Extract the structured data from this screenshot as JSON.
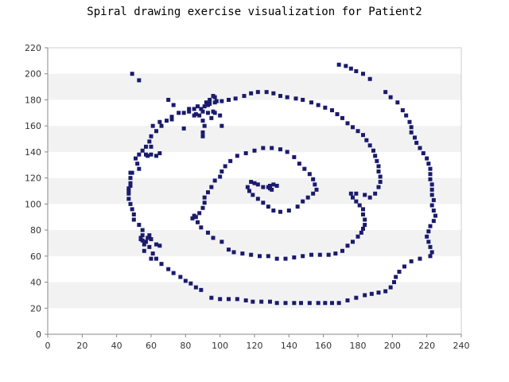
{
  "chart_data": {
    "type": "scatter",
    "title": "Spiral drawing exercise visualization for Patient2",
    "xlabel": "",
    "ylabel": "",
    "xlim": [
      0,
      240
    ],
    "ylim": [
      0,
      220
    ],
    "x_ticks": [
      "0",
      "20",
      "40",
      "60",
      "80",
      "100",
      "120",
      "140",
      "160",
      "180",
      "200",
      "220",
      "240"
    ],
    "y_ticks": [
      "0",
      "20",
      "40",
      "60",
      "80",
      "100",
      "120",
      "140",
      "160",
      "180",
      "200",
      "220"
    ],
    "grid": "alternating horizontal bands",
    "legend": "none",
    "series": [
      {
        "marker": "square",
        "color": "#1a1a6e",
        "points": [
          [
            131,
            115
          ],
          [
            128,
            113
          ],
          [
            125,
            113
          ],
          [
            129,
            112
          ],
          [
            130,
            111
          ],
          [
            133,
            114
          ],
          [
            129,
            114
          ],
          [
            122,
            115
          ],
          [
            120,
            116
          ],
          [
            118,
            117
          ],
          [
            116,
            113
          ],
          [
            117,
            110
          ],
          [
            119,
            107
          ],
          [
            122,
            104
          ],
          [
            125,
            101
          ],
          [
            128,
            98
          ],
          [
            131,
            95
          ],
          [
            135,
            94
          ],
          [
            140,
            95
          ],
          [
            145,
            98
          ],
          [
            148,
            102
          ],
          [
            151,
            105
          ],
          [
            154,
            108
          ],
          [
            156,
            111
          ],
          [
            155,
            115
          ],
          [
            154,
            119
          ],
          [
            152,
            123
          ],
          [
            149,
            127
          ],
          [
            146,
            131
          ],
          [
            143,
            136
          ],
          [
            139,
            140
          ],
          [
            135,
            142
          ],
          [
            130,
            143
          ],
          [
            125,
            143
          ],
          [
            120,
            141
          ],
          [
            115,
            139
          ],
          [
            110,
            137
          ],
          [
            106,
            133
          ],
          [
            103,
            129
          ],
          [
            101,
            125
          ],
          [
            100,
            121
          ],
          [
            97,
            118
          ],
          [
            95,
            113
          ],
          [
            93,
            109
          ],
          [
            91,
            105
          ],
          [
            91,
            101
          ],
          [
            90,
            97
          ],
          [
            88,
            93
          ],
          [
            86,
            90
          ],
          [
            84,
            89
          ],
          [
            85,
            91
          ],
          [
            87,
            86
          ],
          [
            89,
            82
          ],
          [
            93,
            78
          ],
          [
            96,
            74
          ],
          [
            101,
            71
          ],
          [
            105,
            65
          ],
          [
            108,
            63
          ],
          [
            113,
            62
          ],
          [
            118,
            61
          ],
          [
            123,
            60
          ],
          [
            128,
            60
          ],
          [
            133,
            58
          ],
          [
            138,
            58
          ],
          [
            143,
            59
          ],
          [
            148,
            60
          ],
          [
            153,
            61
          ],
          [
            158,
            61
          ],
          [
            163,
            61
          ],
          [
            167,
            62
          ],
          [
            171,
            64
          ],
          [
            174,
            68
          ],
          [
            177,
            71
          ],
          [
            180,
            75
          ],
          [
            182,
            78
          ],
          [
            183,
            81
          ],
          [
            184,
            84
          ],
          [
            184,
            88
          ],
          [
            183,
            92
          ],
          [
            183,
            96
          ],
          [
            181,
            99
          ],
          [
            179,
            102
          ],
          [
            177,
            105
          ],
          [
            176,
            108
          ],
          [
            179,
            108
          ],
          [
            184,
            107
          ],
          [
            187,
            105
          ],
          [
            190,
            108
          ],
          [
            192,
            113
          ],
          [
            193,
            117
          ],
          [
            193,
            121
          ],
          [
            192,
            125
          ],
          [
            192,
            129
          ],
          [
            191,
            133
          ],
          [
            190,
            137
          ],
          [
            189,
            141
          ],
          [
            187,
            145
          ],
          [
            185,
            149
          ],
          [
            183,
            153
          ],
          [
            180,
            156
          ],
          [
            177,
            159
          ],
          [
            174,
            162
          ],
          [
            171,
            166
          ],
          [
            168,
            169
          ],
          [
            165,
            172
          ],
          [
            161,
            174
          ],
          [
            157,
            176
          ],
          [
            153,
            178
          ],
          [
            148,
            180
          ],
          [
            144,
            181
          ],
          [
            139,
            182
          ],
          [
            135,
            183
          ],
          [
            131,
            185
          ],
          [
            127,
            186
          ],
          [
            122,
            186
          ],
          [
            118,
            185
          ],
          [
            114,
            183
          ],
          [
            109,
            181
          ],
          [
            105,
            180
          ],
          [
            101,
            179
          ],
          [
            97,
            178
          ],
          [
            94,
            177
          ],
          [
            91,
            175
          ],
          [
            89,
            173
          ],
          [
            87,
            175
          ],
          [
            85,
            173
          ],
          [
            86,
            169
          ],
          [
            88,
            168
          ],
          [
            90,
            171
          ],
          [
            93,
            170
          ],
          [
            97,
            170
          ],
          [
            100,
            168
          ],
          [
            101,
            160
          ],
          [
            95,
            166
          ],
          [
            96,
            171
          ],
          [
            93,
            176
          ],
          [
            94,
            180
          ],
          [
            97,
            182
          ],
          [
            98,
            179
          ],
          [
            96,
            183
          ],
          [
            92,
            178
          ],
          [
            90,
            164
          ],
          [
            91,
            160
          ],
          [
            90,
            155
          ],
          [
            90,
            152
          ],
          [
            85,
            168
          ],
          [
            82,
            171
          ],
          [
            79,
            170
          ],
          [
            76,
            170
          ],
          [
            72,
            167
          ],
          [
            69,
            164
          ],
          [
            66,
            160
          ],
          [
            63,
            156
          ],
          [
            60,
            152
          ],
          [
            59,
            148
          ],
          [
            57,
            144
          ],
          [
            55,
            141
          ],
          [
            53,
            138
          ],
          [
            51,
            135
          ],
          [
            52,
            131
          ],
          [
            53,
            127
          ],
          [
            49,
            124
          ],
          [
            48,
            120
          ],
          [
            48,
            116
          ],
          [
            47,
            112
          ],
          [
            47,
            108
          ],
          [
            47,
            104
          ],
          [
            48,
            100
          ],
          [
            49,
            96
          ],
          [
            50,
            92
          ],
          [
            50,
            88
          ],
          [
            53,
            84
          ],
          [
            55,
            80
          ],
          [
            55,
            76
          ],
          [
            57,
            71
          ],
          [
            59,
            67
          ],
          [
            61,
            62
          ],
          [
            63,
            58
          ],
          [
            66,
            54
          ],
          [
            70,
            50
          ],
          [
            73,
            47
          ],
          [
            77,
            44
          ],
          [
            80,
            41
          ],
          [
            83,
            39
          ],
          [
            86,
            36
          ],
          [
            89,
            34
          ],
          [
            95,
            28
          ],
          [
            100,
            27
          ],
          [
            105,
            27
          ],
          [
            110,
            27
          ],
          [
            115,
            26
          ],
          [
            119,
            25
          ],
          [
            124,
            25
          ],
          [
            129,
            25
          ],
          [
            133,
            24
          ],
          [
            138,
            24
          ],
          [
            143,
            24
          ],
          [
            147,
            24
          ],
          [
            152,
            24
          ],
          [
            157,
            24
          ],
          [
            161,
            24
          ],
          [
            165,
            24
          ],
          [
            169,
            24
          ],
          [
            174,
            26
          ],
          [
            179,
            28
          ],
          [
            184,
            30
          ],
          [
            188,
            31
          ],
          [
            192,
            32
          ],
          [
            196,
            33
          ],
          [
            199,
            36
          ],
          [
            201,
            40
          ],
          [
            202,
            44
          ],
          [
            204,
            48
          ],
          [
            207,
            52
          ],
          [
            211,
            56
          ],
          [
            216,
            58
          ],
          [
            222,
            60
          ],
          [
            223,
            63
          ],
          [
            222,
            67
          ],
          [
            221,
            71
          ],
          [
            220,
            75
          ],
          [
            221,
            79
          ],
          [
            222,
            83
          ],
          [
            224,
            87
          ],
          [
            225,
            91
          ],
          [
            224,
            95
          ],
          [
            223,
            99
          ],
          [
            224,
            103
          ],
          [
            223,
            107
          ],
          [
            223,
            111
          ],
          [
            223,
            115
          ],
          [
            222,
            119
          ],
          [
            222,
            123
          ],
          [
            222,
            127
          ],
          [
            221,
            131
          ],
          [
            220,
            135
          ],
          [
            218,
            139
          ],
          [
            216,
            143
          ],
          [
            214,
            147
          ],
          [
            213,
            151
          ],
          [
            211,
            155
          ],
          [
            211,
            159
          ],
          [
            210,
            163
          ],
          [
            208,
            168
          ],
          [
            206,
            172
          ],
          [
            203,
            178
          ],
          [
            199,
            182
          ],
          [
            196,
            186
          ],
          [
            187,
            196
          ],
          [
            183,
            200
          ],
          [
            179,
            202
          ],
          [
            176,
            204
          ],
          [
            173,
            206
          ],
          [
            169,
            207
          ],
          [
            49,
            200
          ],
          [
            53,
            195
          ],
          [
            79,
            158
          ],
          [
            82,
            173
          ],
          [
            73,
            176
          ],
          [
            70,
            180
          ],
          [
            72,
            165
          ],
          [
            65,
            163
          ],
          [
            61,
            160
          ],
          [
            60,
            138
          ],
          [
            57,
            138
          ],
          [
            60,
            144
          ],
          [
            63,
            137
          ],
          [
            65,
            139
          ],
          [
            58,
            137
          ],
          [
            65,
            68
          ],
          [
            63,
            69
          ],
          [
            60,
            73
          ],
          [
            58,
            74
          ],
          [
            59,
            76
          ],
          [
            54,
            74
          ],
          [
            54,
            73
          ],
          [
            55,
            72
          ],
          [
            56,
            69
          ],
          [
            56,
            64
          ],
          [
            60,
            58
          ],
          [
            48,
            114
          ],
          [
            47,
            110
          ],
          [
            48,
            124
          ]
        ]
      }
    ]
  }
}
